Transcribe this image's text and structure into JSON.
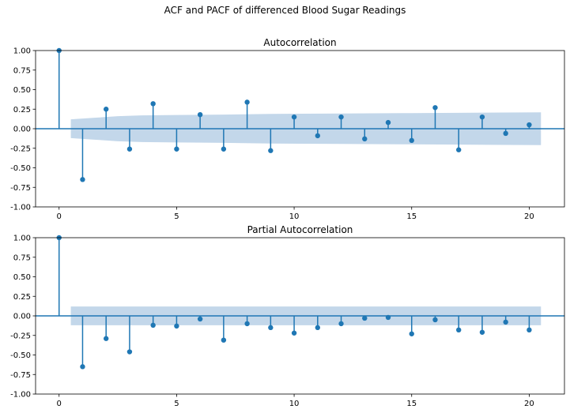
{
  "figure_title": "ACF and PACF of differenced Blood Sugar Readings",
  "chart_data": [
    {
      "type": "stem",
      "title": "Autocorrelation",
      "xlabel": "",
      "ylabel": "",
      "xlim": [
        -1,
        21.5
      ],
      "ylim": [
        -1.0,
        1.0
      ],
      "xticks": [
        "0",
        "5",
        "10",
        "15",
        "20"
      ],
      "yticks": [
        "-1.00",
        "-0.75",
        "-0.50",
        "-0.25",
        "0.00",
        "0.25",
        "0.50",
        "0.75",
        "1.00"
      ],
      "grid": false,
      "lags": [
        0,
        1,
        2,
        3,
        4,
        5,
        6,
        7,
        8,
        9,
        10,
        11,
        12,
        13,
        14,
        15,
        16,
        17,
        18,
        19,
        20
      ],
      "values": [
        1.0,
        -0.65,
        0.25,
        -0.26,
        0.32,
        -0.26,
        0.18,
        -0.26,
        0.34,
        -0.28,
        0.15,
        -0.09,
        0.15,
        -0.13,
        0.08,
        -0.15,
        0.27,
        -0.27,
        0.15,
        -0.06,
        0.05
      ],
      "confint": {
        "x": [
          0.5,
          1.5,
          2.5,
          3.5,
          5,
          7,
          9,
          12,
          15,
          20.5
        ],
        "upper": [
          0.12,
          0.14,
          0.16,
          0.17,
          0.175,
          0.18,
          0.19,
          0.195,
          0.2,
          0.21
        ],
        "lower": [
          -0.12,
          -0.14,
          -0.16,
          -0.17,
          -0.175,
          -0.18,
          -0.19,
          -0.195,
          -0.2,
          -0.21
        ]
      },
      "colors": {
        "stem": "#1f77b4",
        "band": "#c3d7ea"
      }
    },
    {
      "type": "stem",
      "title": "Partial Autocorrelation",
      "xlabel": "",
      "ylabel": "",
      "xlim": [
        -1,
        21.5
      ],
      "ylim": [
        -1.0,
        1.0
      ],
      "xticks": [
        "0",
        "5",
        "10",
        "15",
        "20"
      ],
      "yticks": [
        "-1.00",
        "-0.75",
        "-0.50",
        "-0.25",
        "0.00",
        "0.25",
        "0.50",
        "0.75",
        "1.00"
      ],
      "grid": false,
      "lags": [
        0,
        1,
        2,
        3,
        4,
        5,
        6,
        7,
        8,
        9,
        10,
        11,
        12,
        13,
        14,
        15,
        16,
        17,
        18,
        19,
        20
      ],
      "values": [
        1.0,
        -0.65,
        -0.29,
        -0.46,
        -0.12,
        -0.13,
        -0.04,
        -0.31,
        -0.1,
        -0.15,
        -0.22,
        -0.15,
        -0.1,
        -0.03,
        -0.02,
        -0.23,
        -0.05,
        -0.18,
        -0.21,
        -0.08,
        -0.18
      ],
      "confint": {
        "x": [
          0.5,
          20.5
        ],
        "upper": [
          0.12,
          0.12
        ],
        "lower": [
          -0.12,
          -0.12
        ]
      },
      "colors": {
        "stem": "#1f77b4",
        "band": "#c3d7ea"
      }
    }
  ]
}
